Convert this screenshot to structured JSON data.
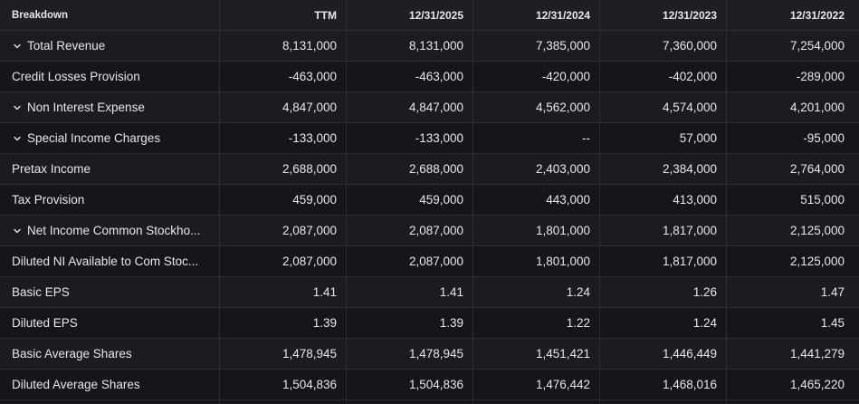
{
  "header": {
    "breakdown": "Breakdown",
    "columns": [
      "TTM",
      "12/31/2025",
      "12/31/2024",
      "12/31/2023",
      "12/31/2022"
    ]
  },
  "rows": [
    {
      "label": "Total Revenue",
      "expandable": true,
      "values": [
        "8,131,000",
        "8,131,000",
        "7,385,000",
        "7,360,000",
        "7,254,000"
      ]
    },
    {
      "label": "Credit Losses Provision",
      "expandable": false,
      "values": [
        "-463,000",
        "-463,000",
        "-420,000",
        "-402,000",
        "-289,000"
      ]
    },
    {
      "label": "Non Interest Expense",
      "expandable": true,
      "values": [
        "4,847,000",
        "4,847,000",
        "4,562,000",
        "4,574,000",
        "4,201,000"
      ]
    },
    {
      "label": "Special Income Charges",
      "expandable": true,
      "values": [
        "-133,000",
        "-133,000",
        "--",
        "57,000",
        "-95,000"
      ]
    },
    {
      "label": "Pretax Income",
      "expandable": false,
      "values": [
        "2,688,000",
        "2,688,000",
        "2,403,000",
        "2,384,000",
        "2,764,000"
      ]
    },
    {
      "label": "Tax Provision",
      "expandable": false,
      "values": [
        "459,000",
        "459,000",
        "443,000",
        "413,000",
        "515,000"
      ]
    },
    {
      "label": "Net Income Common Stockho...",
      "expandable": true,
      "values": [
        "2,087,000",
        "2,087,000",
        "1,801,000",
        "1,817,000",
        "2,125,000"
      ]
    },
    {
      "label": "Diluted NI Available to Com Stoc...",
      "expandable": false,
      "values": [
        "2,087,000",
        "2,087,000",
        "1,801,000",
        "1,817,000",
        "2,125,000"
      ]
    },
    {
      "label": "Basic EPS",
      "expandable": false,
      "values": [
        "1.41",
        "1.41",
        "1.24",
        "1.26",
        "1.47"
      ]
    },
    {
      "label": "Diluted EPS",
      "expandable": false,
      "values": [
        "1.39",
        "1.39",
        "1.22",
        "1.24",
        "1.45"
      ]
    },
    {
      "label": "Basic Average Shares",
      "expandable": false,
      "values": [
        "1,478,945",
        "1,478,945",
        "1,451,421",
        "1,446,449",
        "1,441,279"
      ]
    },
    {
      "label": "Diluted Average Shares",
      "expandable": false,
      "values": [
        "1,504,836",
        "1,504,836",
        "1,476,442",
        "1,468,016",
        "1,465,220"
      ]
    }
  ],
  "icons": {
    "expand": "chevron-down-icon"
  },
  "colors": {
    "text": "#e6e7ea",
    "row_even": "#1b1c20",
    "row_odd": "#15161a",
    "border": "#2c2e33"
  }
}
